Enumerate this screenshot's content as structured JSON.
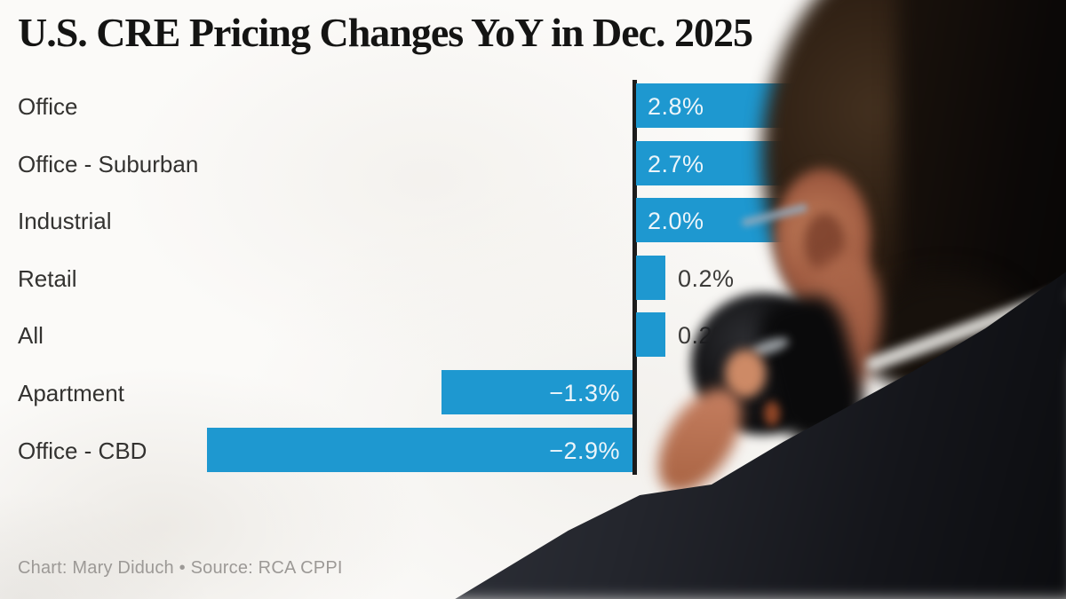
{
  "title": "U.S. CRE Pricing Changes YoY in Dec. 2025",
  "footer": "Chart: Mary Diduch • Source: RCA CPPI",
  "chart_data": {
    "type": "bar",
    "orientation": "horizontal",
    "title": "U.S. CRE Pricing Changes YoY in Dec. 2025",
    "xlabel": "",
    "ylabel": "",
    "unit": "%",
    "categories": [
      "Office",
      "Office - Suburban",
      "Industrial",
      "Retail",
      "All",
      "Apartment",
      "Office - CBD"
    ],
    "values": [
      2.8,
      2.7,
      2.0,
      0.2,
      0.2,
      -1.3,
      -2.9
    ],
    "labels": [
      "2.8%",
      "2.7%",
      "2.0%",
      "0.2%",
      "0.2%",
      "−1.3%",
      "−2.9%"
    ],
    "value_axis_range": [
      -2.9,
      2.8
    ],
    "grid": false,
    "legend": false,
    "bar_color": "#1e98d0",
    "axis_color": "#1b1b1b",
    "label_color_inside": "#ecf5fa",
    "label_color_outside": "#3c3b39",
    "attribution": "Chart: Mary Diduch • Source: RCA CPPI"
  }
}
